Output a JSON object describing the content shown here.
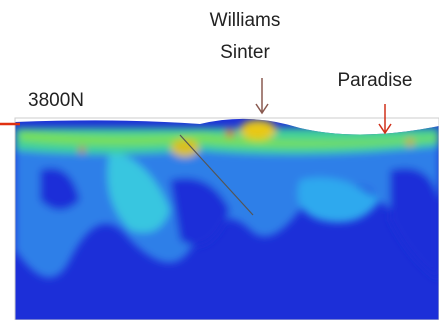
{
  "labels": {
    "line_name": "3800N",
    "williams": [
      "Williams",
      "Sinter"
    ],
    "paradise": "Paradise"
  }
}
